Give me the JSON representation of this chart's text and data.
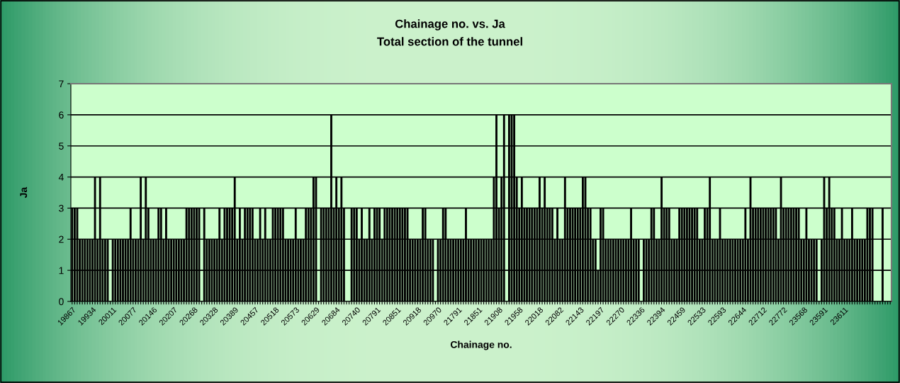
{
  "chart_data": {
    "type": "bar",
    "title": "Chainage no. vs. Ja",
    "subtitle": "Total section of the tunnel",
    "xlabel": "Chainage no.",
    "ylabel": "Ja",
    "categories": [
      "19867",
      null,
      null,
      null,
      null,
      null,
      null,
      null,
      "19934",
      null,
      null,
      null,
      null,
      null,
      null,
      null,
      "20011",
      null,
      null,
      null,
      null,
      null,
      null,
      null,
      "20077",
      null,
      null,
      null,
      null,
      null,
      null,
      null,
      "20146",
      null,
      null,
      null,
      null,
      null,
      null,
      null,
      "20207",
      null,
      null,
      null,
      null,
      null,
      null,
      null,
      "20268",
      null,
      null,
      null,
      null,
      null,
      null,
      null,
      "20328",
      null,
      null,
      null,
      null,
      null,
      null,
      null,
      "20389",
      null,
      null,
      null,
      null,
      null,
      null,
      null,
      "20457",
      null,
      null,
      null,
      null,
      null,
      null,
      null,
      "20518",
      null,
      null,
      null,
      null,
      null,
      null,
      null,
      "20573",
      null,
      null,
      null,
      null,
      null,
      null,
      null,
      "20629",
      null,
      null,
      null,
      null,
      null,
      null,
      null,
      "20684",
      null,
      null,
      null,
      null,
      null,
      null,
      null,
      "20740",
      null,
      null,
      null,
      null,
      null,
      null,
      null,
      "20791",
      null,
      null,
      null,
      null,
      null,
      null,
      null,
      "20851",
      null,
      null,
      null,
      null,
      null,
      null,
      null,
      "20918",
      null,
      null,
      null,
      null,
      null,
      null,
      null,
      "20970",
      null,
      null,
      null,
      null,
      null,
      null,
      null,
      "21791",
      null,
      null,
      null,
      null,
      null,
      null,
      null,
      "21851",
      null,
      null,
      null,
      null,
      null,
      null,
      null,
      "21908",
      null,
      null,
      null,
      null,
      null,
      null,
      null,
      "21958",
      null,
      null,
      null,
      null,
      null,
      null,
      null,
      "22018",
      null,
      null,
      null,
      null,
      null,
      null,
      null,
      "22082",
      null,
      null,
      null,
      null,
      null,
      null,
      null,
      "22143",
      null,
      null,
      null,
      null,
      null,
      null,
      null,
      "22197",
      null,
      null,
      null,
      null,
      null,
      null,
      null,
      "22270",
      null,
      null,
      null,
      null,
      null,
      null,
      null,
      "22336",
      null,
      null,
      null,
      null,
      null,
      null,
      null,
      "22394",
      null,
      null,
      null,
      null,
      null,
      null,
      null,
      "22459",
      null,
      null,
      null,
      null,
      null,
      null,
      null,
      "22533",
      null,
      null,
      null,
      null,
      null,
      null,
      null,
      "22593",
      null,
      null,
      null,
      null,
      null,
      null,
      null,
      "22644",
      null,
      null,
      null,
      null,
      null,
      null,
      null,
      "22712",
      null,
      null,
      null,
      null,
      null,
      null,
      null,
      "22772",
      null,
      null,
      null,
      null,
      null,
      null,
      null,
      "23568",
      null,
      null,
      null,
      null,
      null,
      null,
      null,
      "23591",
      null,
      null,
      null,
      null,
      null,
      null,
      null,
      "23611",
      null,
      null,
      null,
      null,
      null,
      null,
      null,
      null,
      null,
      null,
      null,
      null,
      null,
      null,
      null,
      null,
      null,
      null
    ],
    "values": [
      3,
      3,
      3,
      2,
      2,
      2,
      2,
      2,
      2,
      4,
      2,
      4,
      2,
      2,
      2,
      0,
      2,
      2,
      2,
      2,
      2,
      2,
      2,
      3,
      2,
      2,
      2,
      4,
      2,
      4,
      3,
      2,
      2,
      2,
      3,
      3,
      2,
      3,
      2,
      2,
      2,
      2,
      2,
      2,
      2,
      3,
      3,
      3,
      3,
      3,
      3,
      0,
      3,
      2,
      2,
      2,
      2,
      2,
      3,
      2,
      3,
      3,
      3,
      3,
      4,
      2,
      3,
      2,
      3,
      3,
      3,
      3,
      2,
      2,
      3,
      2,
      3,
      2,
      2,
      3,
      3,
      3,
      3,
      3,
      2,
      2,
      2,
      2,
      3,
      2,
      2,
      2,
      3,
      3,
      3,
      4,
      4,
      0,
      3,
      3,
      3,
      3,
      6,
      3,
      4,
      3,
      4,
      3,
      0,
      0,
      3,
      3,
      3,
      2,
      3,
      2,
      2,
      3,
      2,
      3,
      3,
      3,
      2,
      3,
      3,
      3,
      3,
      3,
      3,
      3,
      3,
      3,
      3,
      2,
      2,
      2,
      2,
      2,
      3,
      3,
      2,
      2,
      2,
      0,
      2,
      2,
      3,
      3,
      2,
      2,
      2,
      2,
      2,
      2,
      2,
      3,
      2,
      2,
      2,
      2,
      2,
      2,
      2,
      2,
      2,
      2,
      4,
      6,
      3,
      4,
      6,
      0,
      6,
      6,
      6,
      4,
      3,
      4,
      3,
      3,
      3,
      3,
      3,
      3,
      4,
      3,
      4,
      3,
      3,
      3,
      2,
      3,
      2,
      2,
      4,
      3,
      3,
      3,
      3,
      3,
      3,
      4,
      4,
      3,
      3,
      2,
      2,
      1,
      3,
      3,
      2,
      2,
      2,
      2,
      2,
      2,
      2,
      2,
      2,
      2,
      3,
      2,
      2,
      2,
      0,
      2,
      2,
      2,
      3,
      3,
      2,
      2,
      4,
      3,
      3,
      3,
      2,
      2,
      2,
      3,
      3,
      3,
      3,
      3,
      3,
      3,
      3,
      2,
      2,
      3,
      3,
      4,
      2,
      2,
      2,
      3,
      2,
      2,
      2,
      2,
      2,
      2,
      2,
      2,
      2,
      3,
      2,
      4,
      3,
      3,
      3,
      3,
      3,
      3,
      3,
      3,
      3,
      3,
      2,
      4,
      3,
      3,
      3,
      3,
      3,
      3,
      3,
      2,
      2,
      3,
      2,
      2,
      2,
      2,
      0,
      2,
      4,
      3,
      4,
      3,
      3,
      2,
      2,
      3,
      2,
      2,
      2,
      3,
      2,
      2,
      2,
      2,
      2,
      3,
      3,
      3,
      0,
      0,
      0,
      3,
      0,
      0,
      0
    ],
    "color": "#000000",
    "ylim": [
      0,
      7
    ],
    "yticks": [
      0,
      1,
      2,
      3,
      4,
      5,
      6,
      7
    ],
    "grid": "y",
    "legend": false
  }
}
